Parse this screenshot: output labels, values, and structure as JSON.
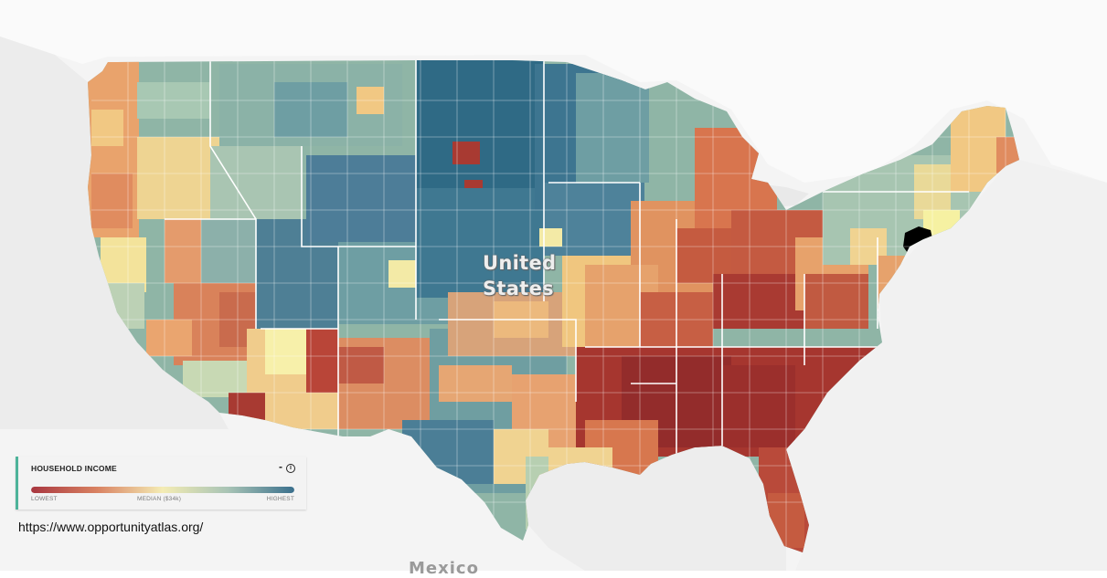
{
  "map": {
    "country_label": "United States",
    "country_label_line1": "United",
    "country_label_line2": "States",
    "neighbor_label": "Mexico",
    "colors": {
      "lowest": "#9e2a2b",
      "low": "#d9734a",
      "median": "#f6f1a2",
      "high": "#6fa3a5",
      "highest": "#2e6b86",
      "border": "#ffffff",
      "highlight": "#000000"
    },
    "highlighted_region": "New York City area"
  },
  "legend": {
    "title": "HOUSEHOLD INCOME",
    "minimize_label": "-",
    "info_label": "i",
    "low_label": "LOWEST",
    "median_label": "MEDIAN ($34k)",
    "high_label": "HIGHEST"
  },
  "source": "https://www.opportunityatlas.org/"
}
